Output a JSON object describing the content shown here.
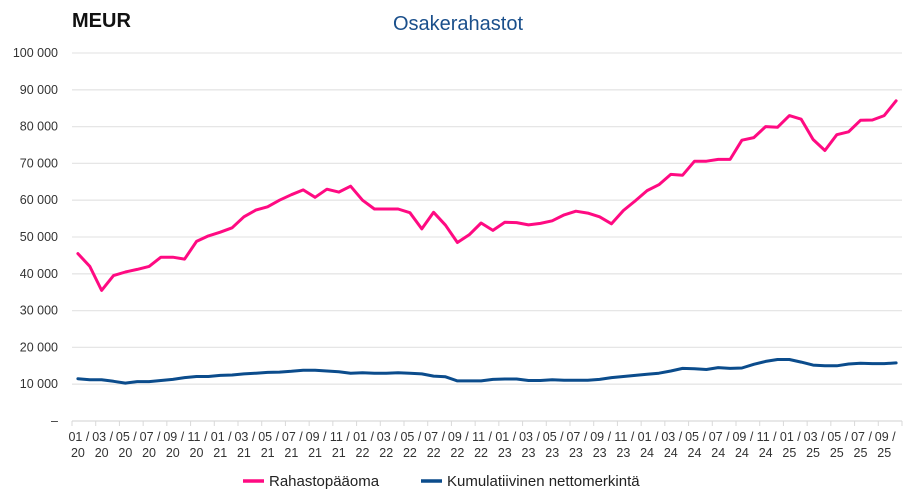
{
  "chart_data": {
    "type": "line",
    "title": "Osakerahastot",
    "unit_label": "MEUR",
    "ylim": [
      0,
      100000
    ],
    "yticks": [
      0,
      10000,
      20000,
      30000,
      40000,
      50000,
      60000,
      70000,
      80000,
      90000,
      100000
    ],
    "ytick_labels": [
      "–",
      "10 000",
      "20 000",
      "30 000",
      "40 000",
      "50 000",
      "60 000",
      "70 000",
      "80 000",
      "90 000",
      "100 000"
    ],
    "grid": true,
    "legend_position": "bottom",
    "x": [
      "01/20",
      "02/20",
      "03/20",
      "04/20",
      "05/20",
      "06/20",
      "07/20",
      "08/20",
      "09/20",
      "10/20",
      "11/20",
      "12/20",
      "01/21",
      "02/21",
      "03/21",
      "04/21",
      "05/21",
      "06/21",
      "07/21",
      "08/21",
      "09/21",
      "10/21",
      "11/21",
      "12/21",
      "01/22",
      "02/22",
      "03/22",
      "04/22",
      "05/22",
      "06/22",
      "07/22",
      "08/22",
      "09/22",
      "10/22",
      "11/22",
      "12/22",
      "01/23",
      "02/23",
      "03/23",
      "04/23",
      "05/23",
      "06/23",
      "07/23",
      "08/23",
      "09/23",
      "10/23",
      "11/23",
      "12/23",
      "01/24",
      "02/24",
      "03/24",
      "04/24",
      "05/24",
      "06/24",
      "07/24",
      "08/24",
      "09/24",
      "10/24",
      "11/24",
      "12/24",
      "01/25",
      "02/25",
      "03/25",
      "04/25",
      "05/25",
      "06/25",
      "07/25",
      "08/25",
      "09/25",
      "10/25"
    ],
    "xtick_labels": [
      {
        "m": "01 /",
        "y": "20"
      },
      {
        "m": "03 /",
        "y": "20"
      },
      {
        "m": "05 /",
        "y": "20"
      },
      {
        "m": "07 /",
        "y": "20"
      },
      {
        "m": "09 /",
        "y": "20"
      },
      {
        "m": "11 /",
        "y": "20"
      },
      {
        "m": "01 /",
        "y": "21"
      },
      {
        "m": "03 /",
        "y": "21"
      },
      {
        "m": "05 /",
        "y": "21"
      },
      {
        "m": "07 /",
        "y": "21"
      },
      {
        "m": "09 /",
        "y": "21"
      },
      {
        "m": "11 /",
        "y": "21"
      },
      {
        "m": "01 /",
        "y": "22"
      },
      {
        "m": "03 /",
        "y": "22"
      },
      {
        "m": "05 /",
        "y": "22"
      },
      {
        "m": "07 /",
        "y": "22"
      },
      {
        "m": "09 /",
        "y": "22"
      },
      {
        "m": "11 /",
        "y": "22"
      },
      {
        "m": "01 /",
        "y": "23"
      },
      {
        "m": "03 /",
        "y": "23"
      },
      {
        "m": "05 /",
        "y": "23"
      },
      {
        "m": "07 /",
        "y": "23"
      },
      {
        "m": "09 /",
        "y": "23"
      },
      {
        "m": "11 /",
        "y": "23"
      },
      {
        "m": "01 /",
        "y": "24"
      },
      {
        "m": "03 /",
        "y": "24"
      },
      {
        "m": "05 /",
        "y": "24"
      },
      {
        "m": "07 /",
        "y": "24"
      },
      {
        "m": "09 /",
        "y": "24"
      },
      {
        "m": "11 /",
        "y": "24"
      },
      {
        "m": "01 /",
        "y": "25"
      },
      {
        "m": "03 /",
        "y": "25"
      },
      {
        "m": "05 /",
        "y": "25"
      },
      {
        "m": "07 /",
        "y": "25"
      },
      {
        "m": "09 /",
        "y": "25"
      }
    ],
    "series": [
      {
        "name": "Rahastopääoma",
        "color": "#ff0a82",
        "values": [
          45500,
          42000,
          35500,
          39500,
          40500,
          41200,
          42000,
          44500,
          44500,
          44000,
          48800,
          50300,
          51300,
          52500,
          55500,
          57300,
          58200,
          60000,
          61500,
          62800,
          60800,
          63000,
          62200,
          63800,
          60000,
          57600,
          57600,
          57600,
          56600,
          52200,
          56700,
          53200,
          48500,
          50600,
          53800,
          51800,
          54000,
          53900,
          53300,
          53700,
          54400,
          56000,
          57000,
          56500,
          55500,
          53600,
          57200,
          59800,
          62600,
          64200,
          67000,
          66800,
          70600,
          70600,
          71100,
          71100,
          76300,
          77000,
          80000,
          79800,
          83000,
          82000,
          76500,
          73500,
          77800,
          78600,
          81700,
          81800,
          83000,
          87000
        ]
      },
      {
        "name": "Kumulatiivinen nettomerkintä",
        "color": "#0b4c8c",
        "values": [
          11500,
          11200,
          11200,
          10800,
          10300,
          10700,
          10700,
          11000,
          11300,
          11800,
          12100,
          12100,
          12400,
          12500,
          12800,
          13000,
          13200,
          13300,
          13500,
          13800,
          13800,
          13600,
          13400,
          13000,
          13100,
          13000,
          13000,
          13100,
          13000,
          12800,
          12200,
          12000,
          10900,
          10900,
          10900,
          11300,
          11400,
          11400,
          11000,
          11000,
          11200,
          11100,
          11100,
          11100,
          11300,
          11800,
          12100,
          12400,
          12700,
          13000,
          13600,
          14300,
          14200,
          14000,
          14500,
          14300,
          14400,
          15400,
          16200,
          16700,
          16700,
          16000,
          15200,
          15000,
          15000,
          15500,
          15700,
          15600,
          15600,
          15800
        ]
      }
    ]
  }
}
